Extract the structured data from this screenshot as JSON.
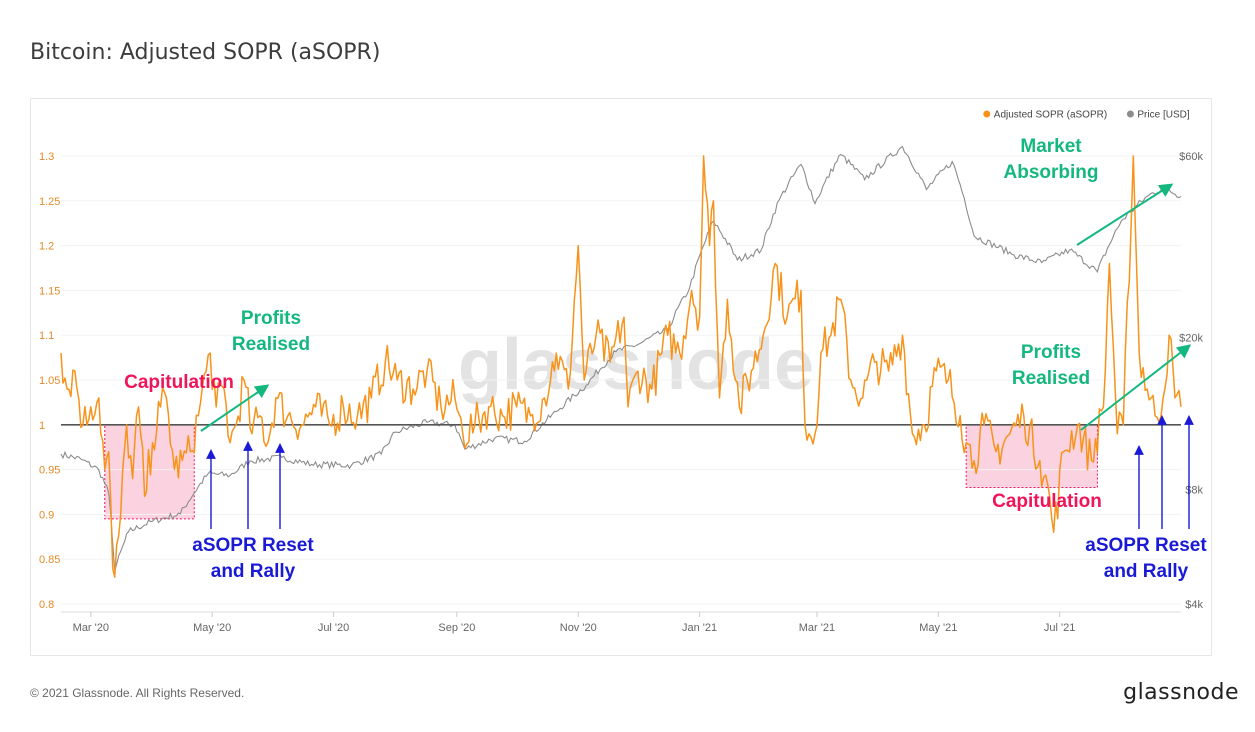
{
  "header": {
    "title": "Bitcoin: Adjusted SOPR (aSOPR)"
  },
  "footer": {
    "copyright": "© 2021 Glassnode. All Rights Reserved.",
    "brand": "glassnode"
  },
  "watermark": "glassnode",
  "colors": {
    "asopr": "#f7931a",
    "price": "#8c8c8c",
    "baseline": "#555555",
    "capitulation": "#f0145a",
    "capitulation_fill": "#f9c4d6",
    "profits": "#14b87f",
    "reset": "#1a1ad6",
    "axis_text_left": "#e08b2a",
    "axis_text": "#666666"
  },
  "chart_data": {
    "type": "line",
    "title": "Bitcoin: Adjusted SOPR (aSOPR)",
    "legend": {
      "placement": "top-right",
      "items": [
        {
          "name": "Adjusted SOPR (aSOPR)",
          "color": "#f7931a"
        },
        {
          "name": "Price [USD]",
          "color": "#8c8c8c"
        }
      ]
    },
    "x_range": [
      "2020-02-15",
      "2021-08-31"
    ],
    "x_ticks": [
      {
        "date": "2020-03-01",
        "label": "Mar '20"
      },
      {
        "date": "2020-05-01",
        "label": "May '20"
      },
      {
        "date": "2020-07-01",
        "label": "Jul '20"
      },
      {
        "date": "2020-09-01",
        "label": "Sep '20"
      },
      {
        "date": "2020-11-01",
        "label": "Nov '20"
      },
      {
        "date": "2021-01-01",
        "label": "Jan '21"
      },
      {
        "date": "2021-03-01",
        "label": "Mar '21"
      },
      {
        "date": "2021-05-01",
        "label": "May '21"
      },
      {
        "date": "2021-07-01",
        "label": "Jul '21"
      }
    ],
    "y_left": {
      "label": "",
      "range": [
        0.8,
        1.3
      ],
      "ticks": [
        "0.8",
        "0.85",
        "0.9",
        "0.95",
        "1",
        "1.05",
        "1.1",
        "1.15",
        "1.2",
        "1.25",
        "1.3"
      ]
    },
    "y_right": {
      "label": "",
      "scale": "log",
      "range": [
        4000,
        60000
      ],
      "ticks": [
        {
          "value": 4000,
          "label": "$4k"
        },
        {
          "value": 8000,
          "label": "$8k"
        },
        {
          "value": 20000,
          "label": "$20k"
        },
        {
          "value": 60000,
          "label": "$60k"
        }
      ]
    },
    "baseline": 1,
    "series": [
      {
        "name": "Adjusted SOPR (aSOPR)",
        "axis": "left",
        "points": [
          [
            "2020-02-15",
            1.08
          ],
          [
            "2020-02-18",
            1.04
          ],
          [
            "2020-02-22",
            1.06
          ],
          [
            "2020-02-26",
            1.0
          ],
          [
            "2020-03-01",
            1.02
          ],
          [
            "2020-03-05",
            1.03
          ],
          [
            "2020-03-08",
            0.95
          ],
          [
            "2020-03-10",
            0.97
          ],
          [
            "2020-03-12",
            0.84
          ],
          [
            "2020-03-13",
            0.83
          ],
          [
            "2020-03-16",
            0.9
          ],
          [
            "2020-03-19",
            1.0
          ],
          [
            "2020-03-22",
            0.94
          ],
          [
            "2020-03-25",
            1.02
          ],
          [
            "2020-03-28",
            0.92
          ],
          [
            "2020-04-01",
            0.98
          ],
          [
            "2020-04-05",
            1.02
          ],
          [
            "2020-04-08",
            1.03
          ],
          [
            "2020-04-12",
            0.95
          ],
          [
            "2020-04-16",
            0.96
          ],
          [
            "2020-04-20",
            0.97
          ],
          [
            "2020-04-24",
            1.01
          ],
          [
            "2020-04-28",
            1.06
          ],
          [
            "2020-04-30",
            1.08
          ],
          [
            "2020-05-03",
            1.02
          ],
          [
            "2020-05-07",
            1.04
          ],
          [
            "2020-05-10",
            0.98
          ],
          [
            "2020-05-13",
            1.0
          ],
          [
            "2020-05-17",
            1.05
          ],
          [
            "2020-05-21",
            0.99
          ],
          [
            "2020-05-25",
            1.01
          ],
          [
            "2020-05-29",
            0.98
          ],
          [
            "2020-06-02",
            1.03
          ],
          [
            "2020-06-08",
            1.01
          ],
          [
            "2020-06-15",
            1.0
          ],
          [
            "2020-06-22",
            1.02
          ],
          [
            "2020-06-29",
            1.0
          ],
          [
            "2020-07-06",
            1.02
          ],
          [
            "2020-07-13",
            1.01
          ],
          [
            "2020-07-20",
            1.03
          ],
          [
            "2020-07-27",
            1.07
          ],
          [
            "2020-08-02",
            1.05
          ],
          [
            "2020-08-10",
            1.04
          ],
          [
            "2020-08-17",
            1.06
          ],
          [
            "2020-08-24",
            1.02
          ],
          [
            "2020-08-31",
            1.03
          ],
          [
            "2020-09-04",
            0.99
          ],
          [
            "2020-09-10",
            1.0
          ],
          [
            "2020-09-17",
            1.02
          ],
          [
            "2020-09-24",
            1.01
          ],
          [
            "2020-10-01",
            1.02
          ],
          [
            "2020-10-08",
            1.01
          ],
          [
            "2020-10-15",
            1.03
          ],
          [
            "2020-10-21",
            1.08
          ],
          [
            "2020-10-27",
            1.04
          ],
          [
            "2020-11-01",
            1.2
          ],
          [
            "2020-11-04",
            1.05
          ],
          [
            "2020-11-10",
            1.1
          ],
          [
            "2020-11-17",
            1.07
          ],
          [
            "2020-11-24",
            1.12
          ],
          [
            "2020-11-26",
            1.02
          ],
          [
            "2020-12-01",
            1.06
          ],
          [
            "2020-12-08",
            1.04
          ],
          [
            "2020-12-16",
            1.1
          ],
          [
            "2020-12-22",
            1.08
          ],
          [
            "2020-12-28",
            1.15
          ],
          [
            "2021-01-01",
            1.12
          ],
          [
            "2021-01-03",
            1.3
          ],
          [
            "2021-01-06",
            1.2
          ],
          [
            "2021-01-08",
            1.25
          ],
          [
            "2021-01-11",
            1.03
          ],
          [
            "2021-01-15",
            1.14
          ],
          [
            "2021-01-21",
            1.02
          ],
          [
            "2021-01-27",
            1.06
          ],
          [
            "2021-02-02",
            1.1
          ],
          [
            "2021-02-08",
            1.18
          ],
          [
            "2021-02-14",
            1.12
          ],
          [
            "2021-02-21",
            1.15
          ],
          [
            "2021-02-23",
            1.0
          ],
          [
            "2021-02-28",
            0.99
          ],
          [
            "2021-03-03",
            1.08
          ],
          [
            "2021-03-08",
            1.1
          ],
          [
            "2021-03-13",
            1.14
          ],
          [
            "2021-03-18",
            1.05
          ],
          [
            "2021-03-24",
            1.03
          ],
          [
            "2021-03-30",
            1.07
          ],
          [
            "2021-04-06",
            1.06
          ],
          [
            "2021-04-13",
            1.1
          ],
          [
            "2021-04-18",
            0.99
          ],
          [
            "2021-04-24",
            1.0
          ],
          [
            "2021-04-30",
            1.06
          ],
          [
            "2021-05-06",
            1.05
          ],
          [
            "2021-05-12",
            1.01
          ],
          [
            "2021-05-15",
            0.98
          ],
          [
            "2021-05-19",
            0.96
          ],
          [
            "2021-05-24",
            1.0
          ],
          [
            "2021-05-30",
            0.97
          ],
          [
            "2021-06-06",
            0.99
          ],
          [
            "2021-06-13",
            1.01
          ],
          [
            "2021-06-21",
            0.96
          ],
          [
            "2021-06-26",
            0.92
          ],
          [
            "2021-06-28",
            0.88
          ],
          [
            "2021-07-03",
            0.97
          ],
          [
            "2021-07-10",
            1.0
          ],
          [
            "2021-07-17",
            0.96
          ],
          [
            "2021-07-23",
            1.02
          ],
          [
            "2021-07-26",
            1.18
          ],
          [
            "2021-07-30",
            0.99
          ],
          [
            "2021-08-02",
            1.0
          ],
          [
            "2021-08-07",
            1.3
          ],
          [
            "2021-08-10",
            1.08
          ],
          [
            "2021-08-14",
            1.04
          ],
          [
            "2021-08-18",
            1.01
          ],
          [
            "2021-08-22",
            1.03
          ],
          [
            "2021-08-25",
            1.1
          ],
          [
            "2021-08-28",
            1.03
          ],
          [
            "2021-08-31",
            1.02
          ]
        ]
      },
      {
        "name": "Price [USD]",
        "axis": "right",
        "points": [
          [
            "2020-02-15",
            9900
          ],
          [
            "2020-02-25",
            9600
          ],
          [
            "2020-03-05",
            9000
          ],
          [
            "2020-03-10",
            7800
          ],
          [
            "2020-03-13",
            4900
          ],
          [
            "2020-03-20",
            6200
          ],
          [
            "2020-04-01",
            6600
          ],
          [
            "2020-04-15",
            6900
          ],
          [
            "2020-04-29",
            8800
          ],
          [
            "2020-05-10",
            8700
          ],
          [
            "2020-05-20",
            9500
          ],
          [
            "2020-06-05",
            9700
          ],
          [
            "2020-06-20",
            9300
          ],
          [
            "2020-07-10",
            9250
          ],
          [
            "2020-07-25",
            9900
          ],
          [
            "2020-08-01",
            11300
          ],
          [
            "2020-08-17",
            12000
          ],
          [
            "2020-08-31",
            11800
          ],
          [
            "2020-09-05",
            10200
          ],
          [
            "2020-09-20",
            10900
          ],
          [
            "2020-10-05",
            10700
          ],
          [
            "2020-10-21",
            12800
          ],
          [
            "2020-11-05",
            15000
          ],
          [
            "2020-11-20",
            18400
          ],
          [
            "2020-12-01",
            19200
          ],
          [
            "2020-12-16",
            21000
          ],
          [
            "2020-12-27",
            27000
          ],
          [
            "2021-01-08",
            40500
          ],
          [
            "2021-01-20",
            32000
          ],
          [
            "2021-02-01",
            34000
          ],
          [
            "2021-02-10",
            46000
          ],
          [
            "2021-02-21",
            57000
          ],
          [
            "2021-02-28",
            45000
          ],
          [
            "2021-03-13",
            60500
          ],
          [
            "2021-03-25",
            52000
          ],
          [
            "2021-04-13",
            63500
          ],
          [
            "2021-04-25",
            49000
          ],
          [
            "2021-05-08",
            58000
          ],
          [
            "2021-05-19",
            37000
          ],
          [
            "2021-06-08",
            33000
          ],
          [
            "2021-06-22",
            31500
          ],
          [
            "2021-07-06",
            34000
          ],
          [
            "2021-07-20",
            29800
          ],
          [
            "2021-08-01",
            40500
          ],
          [
            "2021-08-14",
            47000
          ],
          [
            "2021-08-22",
            49500
          ],
          [
            "2021-08-31",
            47000
          ]
        ]
      }
    ],
    "annotations": [
      {
        "text": "Capitulation",
        "color": "capitulation"
      },
      {
        "text": "Profits\nRealised",
        "color": "profits"
      },
      {
        "text": "aSOPR Reset\nand Rally",
        "color": "reset"
      },
      {
        "text": "Profits\nRealised",
        "color": "profits"
      },
      {
        "text": "Capitulation",
        "color": "capitulation"
      },
      {
        "text": "aSOPR Reset\nand Rally",
        "color": "reset"
      },
      {
        "text": "Market\nAbsorbing",
        "color": "profits"
      }
    ],
    "regions": [
      {
        "name": "capitulation-2020",
        "x": [
          "2020-03-08",
          "2020-04-22"
        ],
        "y": [
          0.895,
          1.0
        ]
      },
      {
        "name": "capitulation-2021",
        "x": [
          "2021-05-15",
          "2021-07-20"
        ],
        "y": [
          0.93,
          1.0
        ]
      }
    ]
  }
}
